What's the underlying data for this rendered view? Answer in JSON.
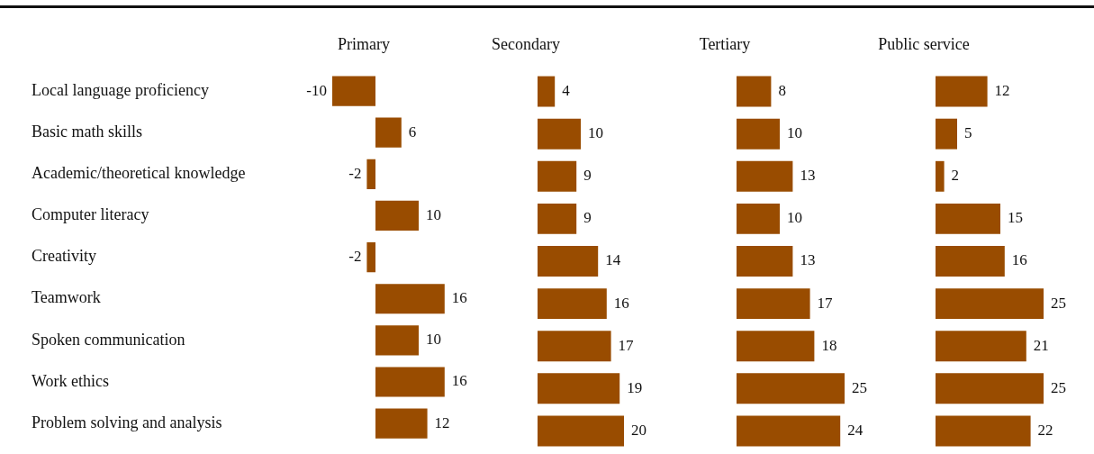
{
  "chart_data": [
    {
      "type": "bar",
      "orientation": "horizontal",
      "title": "Primary",
      "categories": [
        "Local language proficiency",
        "Basic math skills",
        "Academic/theoretical knowledge",
        "Computer literacy",
        "Creativity",
        "Teamwork",
        "Spoken communication",
        "Work ethics",
        "Problem solving and analysis"
      ],
      "values": [
        -10,
        6,
        -2,
        10,
        -2,
        16,
        10,
        16,
        12
      ],
      "color": "#994c00",
      "data_labels": true,
      "tick_labels": "y"
    },
    {
      "type": "bar",
      "orientation": "horizontal",
      "title": "Secondary",
      "categories": [
        null,
        null,
        null,
        null,
        null,
        null,
        null,
        null,
        null
      ],
      "values": [
        4,
        10,
        9,
        9,
        14,
        16,
        17,
        19,
        20
      ],
      "color": "#994c00",
      "data_labels": true,
      "tick_labels": false
    },
    {
      "type": "bar",
      "orientation": "horizontal",
      "title": "Tertiary",
      "categories": [
        null,
        null,
        null,
        null,
        null,
        null,
        null,
        null,
        null
      ],
      "values": [
        8,
        10,
        13,
        10,
        13,
        17,
        18,
        25,
        24
      ],
      "color": "#994c00",
      "data_labels": true,
      "tick_labels": false
    },
    {
      "type": "bar",
      "orientation": "horizontal",
      "title": "Public service",
      "categories": [
        null,
        null,
        null,
        null,
        null,
        null,
        null,
        null,
        null
      ],
      "values": [
        12,
        5,
        2,
        15,
        16,
        25,
        21,
        25,
        22
      ],
      "color": "#994c00",
      "data_labels": true,
      "tick_labels": false
    }
  ]
}
